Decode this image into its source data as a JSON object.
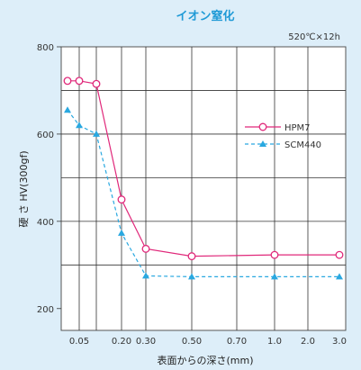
{
  "chart_data": {
    "type": "line",
    "title": "イオン窒化",
    "condition": "520℃×12h",
    "xlabel": "表面からの深さ(mm)",
    "ylabel": "硬 さ HV(300gf)",
    "x_tick_labels": [
      "0.05",
      "0.20",
      "0.30",
      "0.50",
      "0.70",
      "1.0",
      "2.0",
      "3.0"
    ],
    "y_ticks": [
      200,
      400,
      600,
      800
    ],
    "ylim": [
      150,
      800
    ],
    "grid": true,
    "legend_position": "right",
    "x_positions": [
      "0.025",
      "0.05",
      "0.10",
      "0.20",
      "0.30",
      "0.50",
      "1.0",
      "2.0",
      "3.0"
    ],
    "series": [
      {
        "name": "HPM7",
        "color": "#e0287a",
        "style": "solid",
        "marker": "open-circle",
        "x": [
          "0.025",
          "0.05",
          "0.10",
          "0.20",
          "0.30",
          "0.50",
          "1.0",
          "3.0"
        ],
        "values": [
          722,
          722,
          715,
          450,
          337,
          320,
          323,
          323
        ]
      },
      {
        "name": "SCM440",
        "color": "#29a8e0",
        "style": "dashed",
        "marker": "filled-triangle",
        "x": [
          "0.025",
          "0.05",
          "0.10",
          "0.20",
          "0.30",
          "0.50",
          "1.0",
          "3.0"
        ],
        "values": [
          655,
          620,
          600,
          373,
          275,
          273,
          273,
          273
        ]
      }
    ]
  }
}
